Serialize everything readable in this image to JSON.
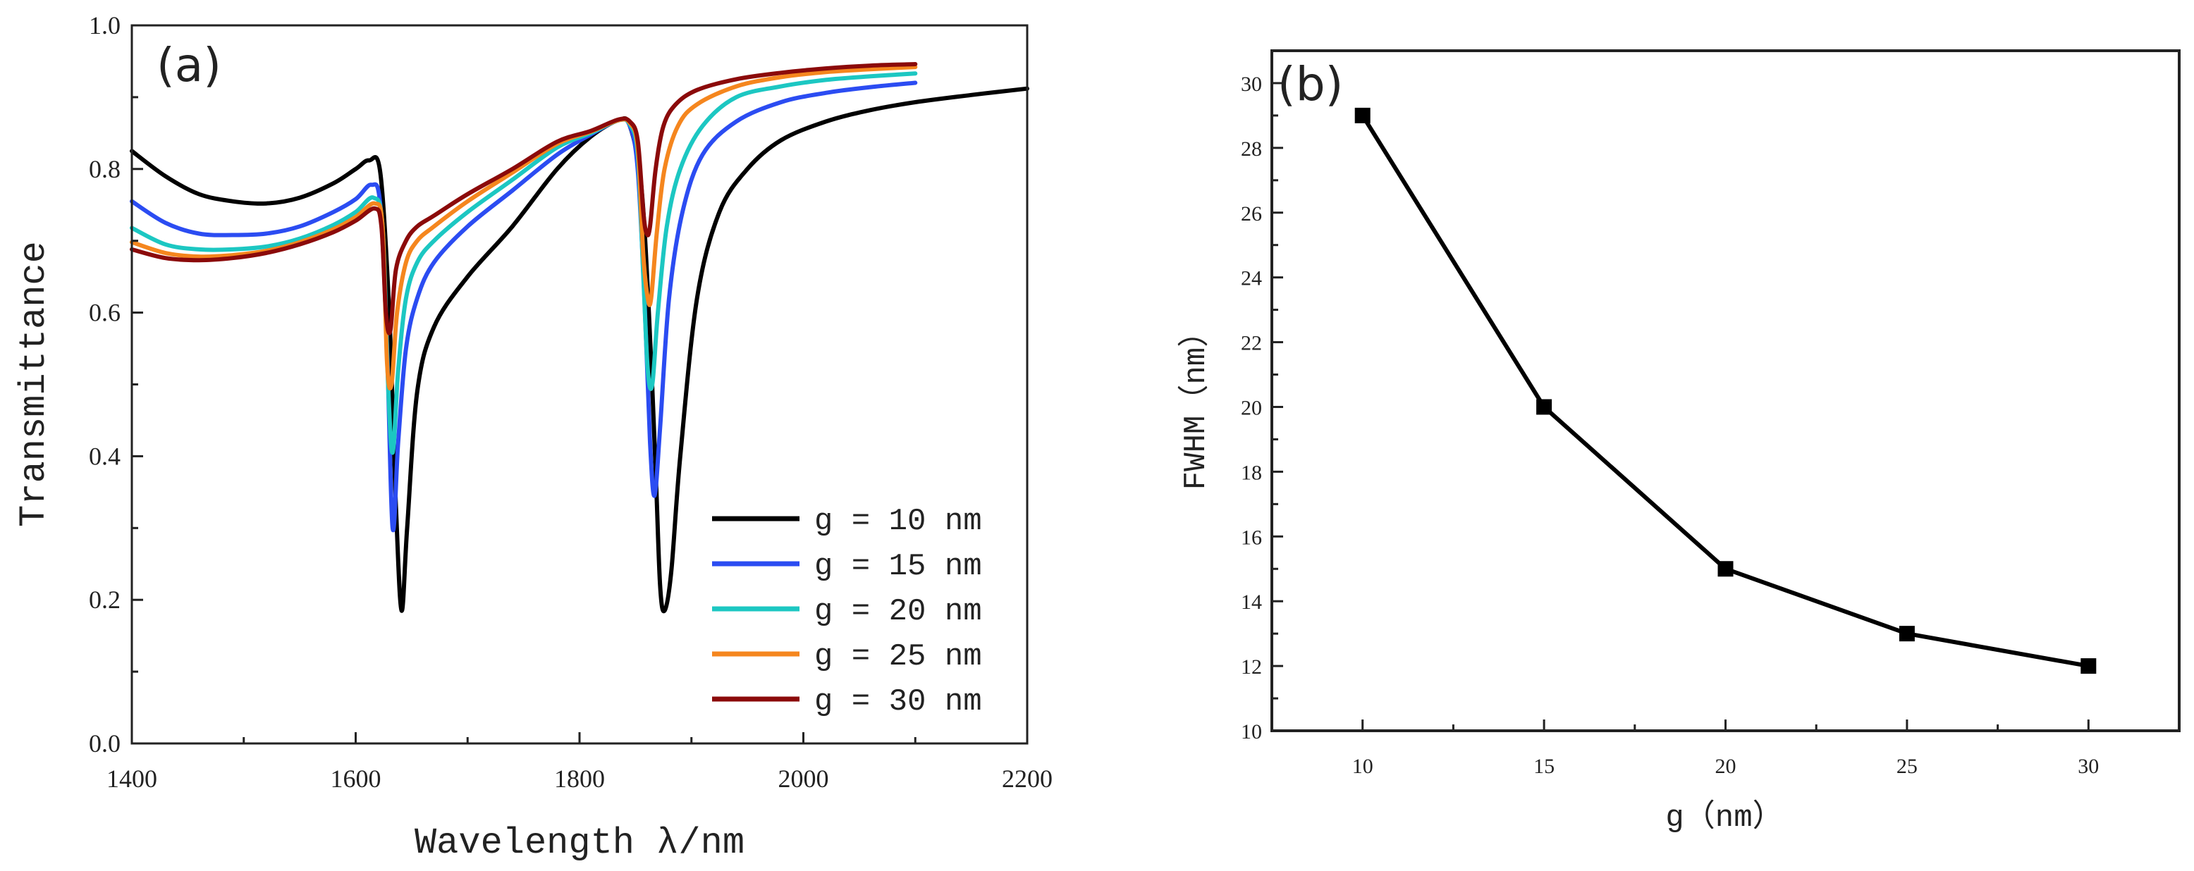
{
  "chart_data": [
    {
      "panel_label": "(a)",
      "type": "line",
      "title": "",
      "xlabel": "Wavelength λ/nm",
      "ylabel": "Transmittance",
      "xlim": [
        1400,
        2200
      ],
      "ylim": [
        0.0,
        1.0
      ],
      "xticks": [
        1400,
        1600,
        1800,
        2000,
        2200
      ],
      "xtick_labels": [
        "1400",
        "1600",
        "1800",
        "2000",
        "2200"
      ],
      "yticks": [
        0.0,
        0.2,
        0.4,
        0.6,
        0.8,
        1.0
      ],
      "ytick_labels": [
        "0.0",
        "0.2",
        "0.4",
        "0.6",
        "0.8",
        "1.0"
      ],
      "legend_position": "bottom-right",
      "series": [
        {
          "name": "g = 10 nm",
          "color": "#000000",
          "x": [
            1400,
            1430,
            1460,
            1490,
            1520,
            1550,
            1580,
            1600,
            1612,
            1622,
            1630,
            1636,
            1641,
            1646,
            1655,
            1670,
            1700,
            1740,
            1780,
            1810,
            1835,
            1845,
            1855,
            1862,
            1868,
            1872,
            1876,
            1882,
            1890,
            1905,
            1925,
            1950,
            1980,
            2020,
            2060,
            2100,
            2150,
            2200
          ],
          "y": [
            0.825,
            0.79,
            0.765,
            0.755,
            0.752,
            0.76,
            0.78,
            0.8,
            0.812,
            0.795,
            0.6,
            0.33,
            0.185,
            0.3,
            0.49,
            0.58,
            0.65,
            0.72,
            0.8,
            0.845,
            0.868,
            0.86,
            0.78,
            0.6,
            0.38,
            0.22,
            0.185,
            0.24,
            0.4,
            0.62,
            0.74,
            0.8,
            0.84,
            0.866,
            0.882,
            0.893,
            0.903,
            0.912
          ]
        },
        {
          "name": "g = 15 nm",
          "color": "#2b4cf2",
          "x": [
            1400,
            1430,
            1460,
            1490,
            1520,
            1550,
            1580,
            1600,
            1614,
            1622,
            1628,
            1633,
            1638,
            1645,
            1655,
            1670,
            1700,
            1740,
            1780,
            1810,
            1835,
            1845,
            1852,
            1858,
            1863,
            1867,
            1872,
            1880,
            1892,
            1910,
            1940,
            1980,
            2020,
            2060,
            2100
          ],
          "y": [
            0.755,
            0.725,
            0.71,
            0.708,
            0.71,
            0.72,
            0.74,
            0.758,
            0.778,
            0.75,
            0.55,
            0.3,
            0.42,
            0.55,
            0.62,
            0.67,
            0.72,
            0.77,
            0.82,
            0.848,
            0.868,
            0.86,
            0.8,
            0.62,
            0.42,
            0.345,
            0.44,
            0.62,
            0.74,
            0.82,
            0.866,
            0.893,
            0.906,
            0.914,
            0.92
          ]
        },
        {
          "name": "g = 20 nm",
          "color": "#1cc7c2",
          "x": [
            1400,
            1430,
            1460,
            1490,
            1520,
            1550,
            1580,
            1600,
            1616,
            1624,
            1629,
            1633,
            1638,
            1645,
            1655,
            1670,
            1700,
            1740,
            1780,
            1810,
            1835,
            1845,
            1852,
            1857,
            1861,
            1865,
            1870,
            1878,
            1890,
            1910,
            1940,
            1980,
            2020,
            2060,
            2100
          ],
          "y": [
            0.718,
            0.695,
            0.688,
            0.688,
            0.692,
            0.703,
            0.722,
            0.74,
            0.76,
            0.72,
            0.5,
            0.405,
            0.52,
            0.62,
            0.67,
            0.7,
            0.74,
            0.785,
            0.83,
            0.85,
            0.868,
            0.862,
            0.82,
            0.65,
            0.52,
            0.5,
            0.6,
            0.72,
            0.8,
            0.86,
            0.9,
            0.915,
            0.924,
            0.929,
            0.933
          ]
        },
        {
          "name": "g = 25 nm",
          "color": "#f5861e",
          "x": [
            1400,
            1430,
            1460,
            1490,
            1520,
            1550,
            1580,
            1600,
            1617,
            1624,
            1628,
            1632,
            1637,
            1645,
            1655,
            1670,
            1700,
            1740,
            1780,
            1810,
            1835,
            1845,
            1852,
            1857,
            1861,
            1864,
            1869,
            1876,
            1888,
            1905,
            1940,
            1980,
            2020,
            2060,
            2100
          ],
          "y": [
            0.698,
            0.683,
            0.678,
            0.68,
            0.686,
            0.698,
            0.716,
            0.733,
            0.752,
            0.72,
            0.53,
            0.5,
            0.6,
            0.67,
            0.7,
            0.72,
            0.755,
            0.795,
            0.835,
            0.852,
            0.868,
            0.864,
            0.83,
            0.68,
            0.62,
            0.62,
            0.71,
            0.8,
            0.86,
            0.89,
            0.915,
            0.928,
            0.935,
            0.939,
            0.942
          ]
        },
        {
          "name": "g = 30 nm",
          "color": "#8b0a0a",
          "x": [
            1400,
            1430,
            1460,
            1490,
            1520,
            1550,
            1580,
            1600,
            1617,
            1623,
            1627,
            1631,
            1636,
            1645,
            1655,
            1670,
            1700,
            1740,
            1780,
            1810,
            1835,
            1845,
            1852,
            1857,
            1860,
            1863,
            1868,
            1875,
            1886,
            1905,
            1940,
            1980,
            2020,
            2060,
            2100
          ],
          "y": [
            0.688,
            0.676,
            0.673,
            0.676,
            0.683,
            0.695,
            0.712,
            0.728,
            0.745,
            0.72,
            0.6,
            0.575,
            0.66,
            0.7,
            0.72,
            0.735,
            0.765,
            0.8,
            0.838,
            0.853,
            0.869,
            0.866,
            0.84,
            0.74,
            0.71,
            0.72,
            0.8,
            0.86,
            0.89,
            0.91,
            0.925,
            0.934,
            0.94,
            0.944,
            0.946
          ]
        }
      ]
    },
    {
      "panel_label": "(b)",
      "type": "line",
      "title": "",
      "xlabel": "g（nm）",
      "ylabel": "FWHM（nm）",
      "xlim": [
        7.5,
        32.5
      ],
      "ylim": [
        10,
        31
      ],
      "xticks": [
        10,
        15,
        20,
        25,
        30
      ],
      "xtick_labels": [
        "10",
        "15",
        "20",
        "25",
        "30"
      ],
      "yticks": [
        10,
        12,
        14,
        16,
        18,
        20,
        22,
        24,
        26,
        28,
        30
      ],
      "ytick_labels": [
        "10",
        "12",
        "14",
        "16",
        "18",
        "20",
        "22",
        "24",
        "26",
        "28",
        "30"
      ],
      "marker": "square",
      "series": [
        {
          "name": "FWHM",
          "color": "#000000",
          "x": [
            10,
            15,
            20,
            25,
            30
          ],
          "values": [
            29,
            20,
            15,
            13,
            12
          ]
        }
      ]
    }
  ]
}
